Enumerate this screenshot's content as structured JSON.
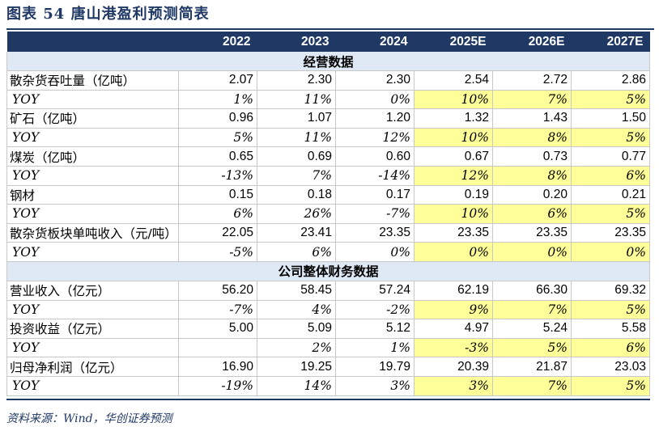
{
  "title": "图表 54    唐山港盈利预测简表",
  "columns": [
    "",
    "2022",
    "2023",
    "2024",
    "2025E",
    "2026E",
    "2027E"
  ],
  "sections": [
    {
      "name": "经营数据",
      "rows": [
        {
          "label": "散杂货吞吐量（亿吨）",
          "kind": "value",
          "values": [
            "2.07",
            "2.30",
            "2.30",
            "2.54",
            "2.72",
            "2.86"
          ]
        },
        {
          "label": "YOY",
          "kind": "pct",
          "values": [
            "1%",
            "11%",
            "0%",
            "10%",
            "7%",
            "5%"
          ]
        },
        {
          "label": "矿石（亿吨）",
          "kind": "value",
          "values": [
            "0.96",
            "1.07",
            "1.20",
            "1.32",
            "1.43",
            "1.50"
          ]
        },
        {
          "label": "YOY",
          "kind": "pct",
          "values": [
            "5%",
            "11%",
            "12%",
            "10%",
            "8%",
            "5%"
          ]
        },
        {
          "label": "煤炭（亿吨）",
          "kind": "value",
          "values": [
            "0.65",
            "0.69",
            "0.60",
            "0.67",
            "0.73",
            "0.77"
          ]
        },
        {
          "label": "YOY",
          "kind": "pct",
          "values": [
            "-13%",
            "7%",
            "-14%",
            "12%",
            "8%",
            "6%"
          ]
        },
        {
          "label": "钢材",
          "kind": "value",
          "values": [
            "0.15",
            "0.18",
            "0.17",
            "0.19",
            "0.20",
            "0.21"
          ]
        },
        {
          "label": "YOY",
          "kind": "pct",
          "values": [
            "6%",
            "26%",
            "-7%",
            "10%",
            "6%",
            "5%"
          ]
        },
        {
          "label": "散杂货板块单吨收入（元/吨）",
          "kind": "value",
          "values": [
            "22.05",
            "23.41",
            "23.35",
            "23.35",
            "23.35",
            "23.35"
          ]
        },
        {
          "label": "YOY",
          "kind": "pct",
          "values": [
            "-5%",
            "6%",
            "0%",
            "0%",
            "0%",
            "0%"
          ]
        }
      ]
    },
    {
      "name": "公司整体财务数据",
      "rows": [
        {
          "label": "营业收入（亿元）",
          "kind": "value",
          "values": [
            "56.20",
            "58.45",
            "57.24",
            "62.19",
            "66.30",
            "69.32"
          ]
        },
        {
          "label": "YOY",
          "kind": "pct",
          "values": [
            "-7%",
            "4%",
            "-2%",
            "9%",
            "7%",
            "5%"
          ]
        },
        {
          "label": "投资收益（亿元）",
          "kind": "value",
          "values": [
            "5.00",
            "5.09",
            "5.12",
            "4.97",
            "5.24",
            "5.58"
          ]
        },
        {
          "label": "YOY",
          "kind": "pct",
          "values": [
            "",
            "2%",
            "1%",
            "-3%",
            "5%",
            "6%"
          ]
        },
        {
          "label": "归母净利润（亿元）",
          "kind": "value",
          "values": [
            "16.90",
            "19.25",
            "19.79",
            "20.39",
            "21.87",
            "23.03"
          ]
        },
        {
          "label": "YOY",
          "kind": "pct",
          "values": [
            "-19%",
            "14%",
            "3%",
            "3%",
            "7%",
            "5%"
          ]
        }
      ]
    }
  ],
  "source": "资料来源：Wind，华创证券预测",
  "colors": {
    "header_bg": "#1f3864",
    "section_bg": "#dee9f5",
    "highlight": "#ffff99"
  }
}
